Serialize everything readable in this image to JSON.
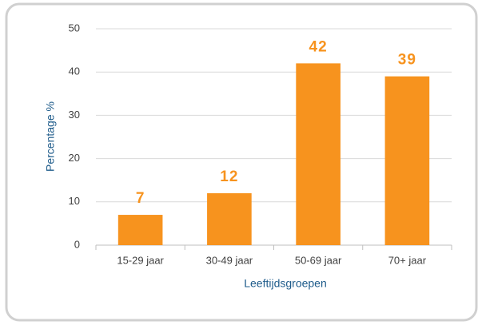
{
  "chart_data": {
    "type": "bar",
    "categories": [
      "15-29 jaar",
      "30-49 jaar",
      "50-69 jaar",
      "70+ jaar"
    ],
    "values": [
      7,
      12,
      42,
      39
    ],
    "color": "#f7931e",
    "xlabel": "Leeftijdsgroepen",
    "ylabel": "Percentage %",
    "ylim": [
      0,
      50
    ],
    "yticks": [
      0,
      10,
      20,
      30,
      40,
      50
    ],
    "grid": true
  }
}
